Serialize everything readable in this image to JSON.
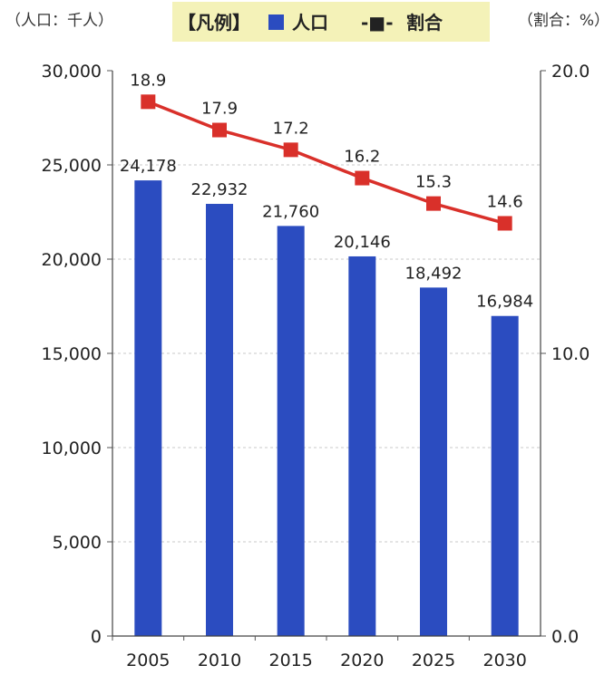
{
  "chart_data": {
    "type": "bar",
    "categories": [
      "2005",
      "2010",
      "2015",
      "2020",
      "2025",
      "2030"
    ],
    "series": [
      {
        "name": "人口",
        "type": "bar",
        "axis": "left",
        "values": [
          24178,
          22932,
          21760,
          20146,
          18492,
          16984
        ],
        "labels": [
          "24,178",
          "22,932",
          "21,760",
          "20,146",
          "18,492",
          "16,984"
        ],
        "color": "#2B4CC0"
      },
      {
        "name": "割合",
        "type": "line",
        "axis": "right",
        "values": [
          18.9,
          17.9,
          17.2,
          16.2,
          15.3,
          14.6
        ],
        "labels": [
          "18.9",
          "17.9",
          "17.2",
          "16.2",
          "15.3",
          "14.6"
        ],
        "color": "#D9302A"
      }
    ],
    "ylim": [
      0,
      30000
    ],
    "y_ticks": [
      "0",
      "5,000",
      "10,000",
      "15,000",
      "20,000",
      "25,000",
      "30,000"
    ],
    "y2lim": [
      0,
      20
    ],
    "y2_ticks": [
      "0.0",
      "10.0",
      "20.0"
    ],
    "left_unit_label": "（人口：千人）",
    "right_unit_label": "（割合：%）",
    "legend_title": "【凡例】",
    "legend_line_marker": "-■-",
    "legend_background": "#F4F2B8",
    "legend_placement": "top",
    "grid": true
  }
}
